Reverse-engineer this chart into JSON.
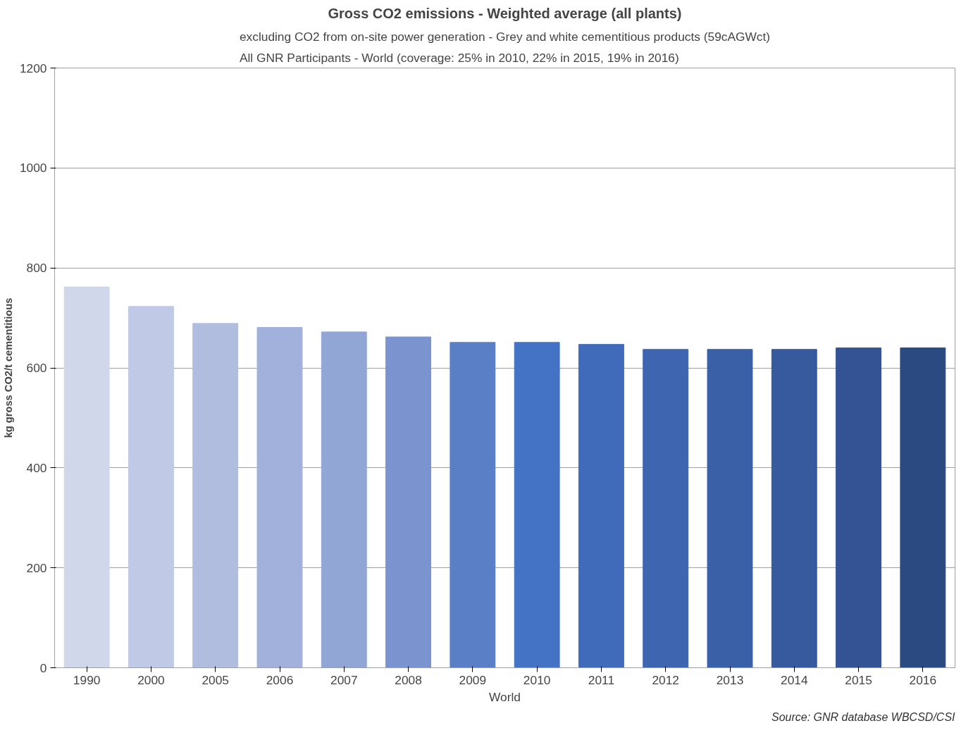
{
  "chart_data": {
    "type": "bar",
    "title": "Gross CO2 emissions - Weighted average (all plants)",
    "subtitle": "excluding CO2 from on-site power generation - Grey and white cementitious products (59cAGWct)\nAll GNR Participants - World (coverage: 25% in 2010, 22% in 2015, 19% in 2016)",
    "xlabel": "World",
    "ylabel": "kg gross CO2/t cementitious",
    "categories": [
      "1990",
      "2000",
      "2005",
      "2006",
      "2007",
      "2008",
      "2009",
      "2010",
      "2011",
      "2012",
      "2013",
      "2014",
      "2015",
      "2016"
    ],
    "values": [
      762,
      723,
      689,
      681,
      672,
      662,
      651,
      651,
      647,
      637,
      637,
      637,
      640,
      640
    ],
    "colors": [
      "#d0d7ea",
      "#c0c9e5",
      "#b1bddf",
      "#a2b1db",
      "#92a6d6",
      "#7b94cf",
      "#5b7fc6",
      "#4472c4",
      "#406bba",
      "#3d65b0",
      "#3a60a8",
      "#375a9f",
      "#335394",
      "#2c4a82"
    ],
    "ylim": [
      0,
      1200
    ],
    "yticks": [
      0,
      200,
      400,
      600,
      800,
      1000,
      1200
    ],
    "grid": "y",
    "annotations": [
      "Source: GNR database WBCSD/CSI"
    ]
  }
}
